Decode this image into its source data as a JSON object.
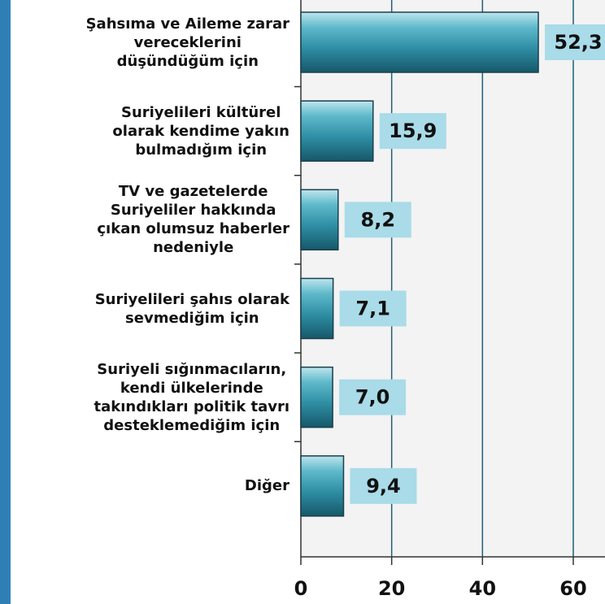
{
  "chart_data": {
    "type": "barh",
    "categories": [
      "Şahsıma ve Aileme zarar\nvereceklerini\ndüşündüğüm için",
      "Suriyelileri kültürel\nolarak kendime yakın\nbulmadığım için",
      "TV ve gazetelerde\nSuriyeliler hakkında\nçıkan olumsuz haberler\nnedeniyle",
      "Suriyelileri şahıs olarak\nsevmediğim için",
      "Suriyeli sığınmacıların,\nkendi ülkelerinde\ntakındıkları politik tavrı\ndesteklemediğim için",
      "Diğer"
    ],
    "values": [
      52.3,
      15.9,
      8.2,
      7.1,
      7.0,
      9.4
    ],
    "value_labels": [
      "52,3",
      "15,9",
      "8,2",
      "7,1",
      "7,0",
      "9,4"
    ],
    "color": "#3a9ab0",
    "xlim": [
      0,
      60
    ],
    "xticks": [
      0,
      20,
      40,
      60
    ],
    "grid": true
  }
}
